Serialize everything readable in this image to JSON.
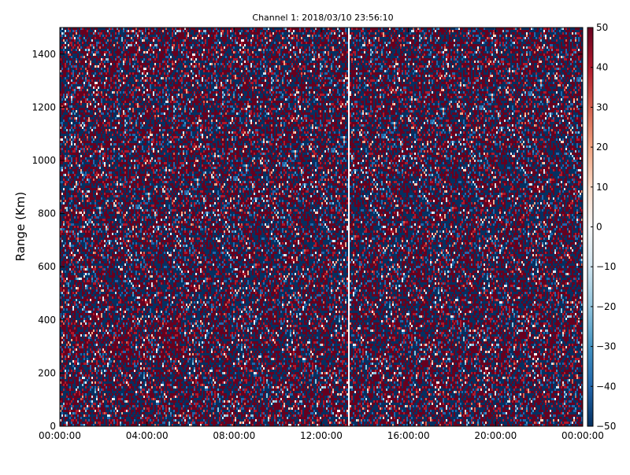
{
  "chart_data": {
    "type": "heatmap",
    "title": "Channel 1: 2018/03/10 23:56:10",
    "xlabel": "",
    "ylabel": "Range (Km)",
    "x_ticks": [
      "00:00:00",
      "04:00:00",
      "08:00:00",
      "12:00:00",
      "16:00:00",
      "20:00:00",
      "00:00:00"
    ],
    "x_range_hours": [
      0,
      24
    ],
    "y_ticks": [
      0,
      200,
      400,
      600,
      800,
      1000,
      1200,
      1400
    ],
    "ylim": [
      0,
      1500
    ],
    "colorbar": {
      "range": [
        -50,
        50
      ],
      "ticks": [
        "50",
        "40",
        "30",
        "20",
        "10",
        "0",
        "−10",
        "−20",
        "−30",
        "−40",
        "−50"
      ],
      "colormap": "RdBu_r",
      "colors": [
        "#053061",
        "#2166ac",
        "#4393c3",
        "#92c5de",
        "#d1e5f0",
        "#f7f7f7",
        "#fddbc7",
        "#f4a582",
        "#d6604d",
        "#b2182b",
        "#67001f"
      ]
    },
    "gap_hours": [
      13.2,
      13.3
    ],
    "grid": false,
    "legend": "colorbar-right",
    "description_of_values": "Noise-like field alternating between saturated values near +50 and -50 across time and range, with a faint warmer band near 250-400 Km range between 00:00 and 06:00."
  }
}
